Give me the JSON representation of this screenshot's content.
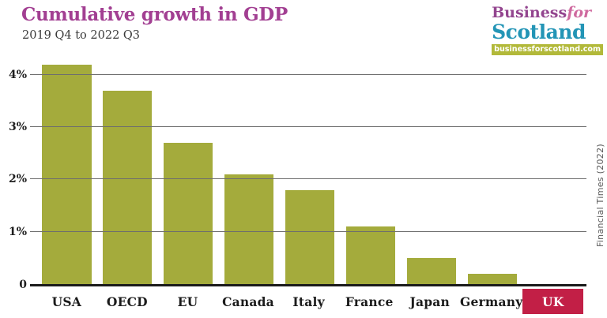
{
  "header": {
    "title": "Cumulative growth in GDP",
    "subtitle": "2019 Q4 to 2022 Q3"
  },
  "logo": {
    "word1": "Business",
    "word2": "for",
    "word3": "Scotland",
    "banner": "businessforscotland.com"
  },
  "source": "Financial Times (2022)",
  "colors": {
    "title": "#a23f92",
    "bar": "#a4ab3c",
    "highlight_label_bg": "#c21f46",
    "gridline": "#6e6e6e",
    "axis": "#1b1b1b",
    "logo_business": "#93458f",
    "logo_for": "#cf6a9f",
    "logo_scotland": "#2395b6",
    "logo_banner_bg": "#b2b93a"
  },
  "chart_data": {
    "type": "bar",
    "title": "Cumulative growth in GDP",
    "subtitle": "2019 Q4 to 2022 Q3",
    "categories": [
      "USA",
      "OECD",
      "EU",
      "Canada",
      "Italy",
      "France",
      "Japan",
      "Germany",
      "UK"
    ],
    "values": [
      4.2,
      3.7,
      2.7,
      2.1,
      1.8,
      1.1,
      0.5,
      0.2,
      0
    ],
    "unit": "%",
    "highlight_category": "UK",
    "xlabel": "",
    "ylabel": "",
    "ylim": [
      0,
      4.3
    ],
    "yticks": [
      0,
      1,
      2,
      3,
      4
    ],
    "ytick_labels": [
      "0",
      "1%",
      "2%",
      "3%",
      "4%"
    ],
    "grid": true,
    "gridlines_over_bars": true,
    "legend": "none",
    "source": "Financial Times (2022)"
  }
}
